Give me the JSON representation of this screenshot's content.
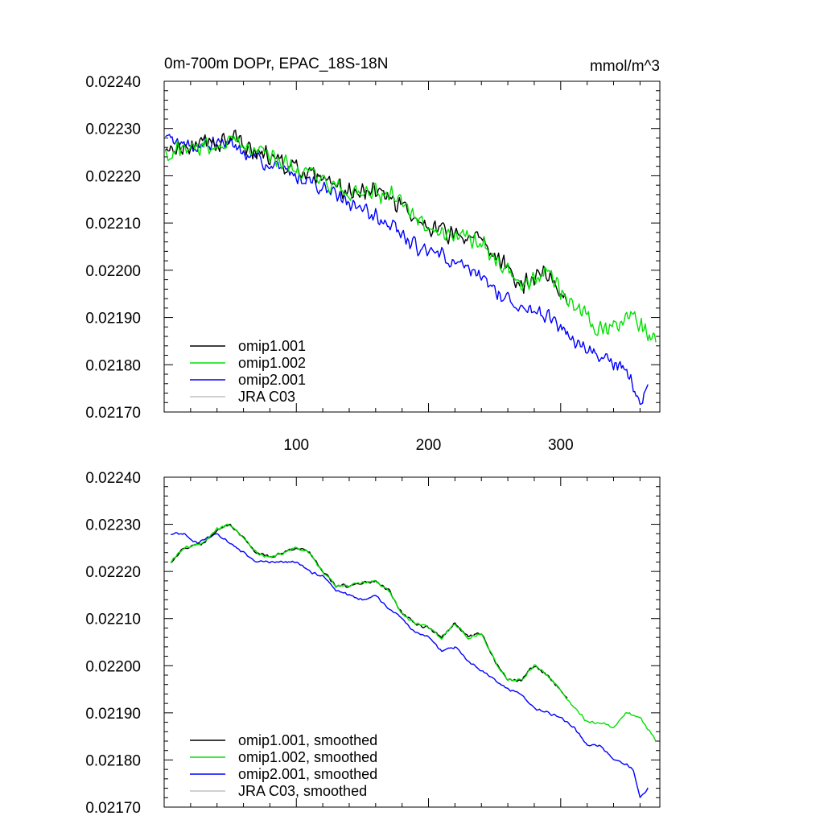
{
  "chart_data": [
    {
      "type": "line",
      "title": "0m-700m DOPr, EPAC_18S-18N",
      "units": "mmol/m^3",
      "xlim": [
        0,
        375
      ],
      "ylim": [
        0.0217,
        0.0224
      ],
      "x_ticks": [
        100,
        200,
        300
      ],
      "x_tick_labels": [
        "100",
        "200",
        "300"
      ],
      "y_ticks": [
        0.0217,
        0.0218,
        0.0219,
        0.022,
        0.0221,
        0.0222,
        0.0223,
        0.0224
      ],
      "y_tick_labels": [
        "0.02170",
        "0.02180",
        "0.02190",
        "0.02200",
        "0.02210",
        "0.02220",
        "0.02230",
        "0.02240"
      ],
      "legend_position": "bottom-left",
      "series": [
        {
          "name": "omip1.001",
          "color": "#000000",
          "x_range": [
            1,
            305
          ],
          "waypoints": [
            [
              0,
              0.02225
            ],
            [
              40,
              0.02227
            ],
            [
              50,
              0.02228
            ],
            [
              80,
              0.02224
            ],
            [
              110,
              0.0222
            ],
            [
              130,
              0.02217
            ],
            [
              170,
              0.02216
            ],
            [
              200,
              0.02209
            ],
            [
              240,
              0.02206
            ],
            [
              270,
              0.02197
            ],
            [
              290,
              0.022
            ],
            [
              305,
              0.02193
            ]
          ],
          "noise": 2.5e-05
        },
        {
          "name": "omip1.002",
          "color": "#00e000",
          "x_range": [
            1,
            372
          ],
          "waypoints": [
            [
              0,
              0.02225
            ],
            [
              40,
              0.02227
            ],
            [
              50,
              0.02228
            ],
            [
              80,
              0.02224
            ],
            [
              110,
              0.0222
            ],
            [
              130,
              0.02217
            ],
            [
              170,
              0.02216
            ],
            [
              200,
              0.02209
            ],
            [
              240,
              0.02206
            ],
            [
              270,
              0.02197
            ],
            [
              290,
              0.022
            ],
            [
              310,
              0.02192
            ],
            [
              330,
              0.02187
            ],
            [
              345,
              0.02188
            ],
            [
              355,
              0.0219
            ],
            [
              372,
              0.02184
            ]
          ],
          "noise": 2.5e-05
        },
        {
          "name": "omip2.001",
          "color": "#0000ff",
          "x_range": [
            1,
            366
          ],
          "waypoints": [
            [
              0,
              0.02228
            ],
            [
              20,
              0.02226
            ],
            [
              50,
              0.02227
            ],
            [
              80,
              0.02222
            ],
            [
              110,
              0.02219
            ],
            [
              140,
              0.02214
            ],
            [
              170,
              0.0221
            ],
            [
              190,
              0.02205
            ],
            [
              210,
              0.02203
            ],
            [
              230,
              0.022
            ],
            [
              260,
              0.02194
            ],
            [
              290,
              0.0219
            ],
            [
              320,
              0.02183
            ],
            [
              350,
              0.02179
            ],
            [
              360,
              0.02172
            ],
            [
              366,
              0.02175
            ]
          ],
          "noise": 2e-05
        },
        {
          "name": "JRA C03",
          "color": "#c0c0c0",
          "x_range": null,
          "waypoints": [],
          "noise": 0
        }
      ]
    },
    {
      "type": "line",
      "title": "",
      "xlim": [
        0,
        375
      ],
      "ylim": [
        0.0217,
        0.0224
      ],
      "x_ticks": [
        100,
        200,
        300
      ],
      "y_ticks": [
        0.0217,
        0.0218,
        0.0219,
        0.022,
        0.0221,
        0.0222,
        0.0223,
        0.0224
      ],
      "y_tick_labels": [
        "0.02170",
        "0.02180",
        "0.02190",
        "0.02200",
        "0.02210",
        "0.02220",
        "0.02230",
        "0.02240"
      ],
      "legend_position": "bottom-left",
      "series": [
        {
          "name": "omip1.001, smoothed",
          "color": "#000000",
          "x_range": [
            5,
            305
          ],
          "waypoints": [
            [
              5,
              0.02222
            ],
            [
              15,
              0.02225
            ],
            [
              30,
              0.02226
            ],
            [
              40,
              0.02229
            ],
            [
              50,
              0.0223
            ],
            [
              60,
              0.02227
            ],
            [
              70,
              0.02224
            ],
            [
              80,
              0.02223
            ],
            [
              90,
              0.02224
            ],
            [
              100,
              0.02225
            ],
            [
              110,
              0.02224
            ],
            [
              120,
              0.0222
            ],
            [
              130,
              0.02217
            ],
            [
              140,
              0.02217
            ],
            [
              160,
              0.02218
            ],
            [
              170,
              0.02216
            ],
            [
              180,
              0.02211
            ],
            [
              190,
              0.02209
            ],
            [
              200,
              0.02208
            ],
            [
              210,
              0.02206
            ],
            [
              220,
              0.02209
            ],
            [
              230,
              0.02206
            ],
            [
              240,
              0.02207
            ],
            [
              250,
              0.02201
            ],
            [
              260,
              0.02197
            ],
            [
              270,
              0.02197
            ],
            [
              280,
              0.022
            ],
            [
              290,
              0.02198
            ],
            [
              305,
              0.02193
            ]
          ],
          "noise": 4e-06
        },
        {
          "name": "omip1.002, smoothed",
          "color": "#00e000",
          "x_range": [
            5,
            372
          ],
          "waypoints": [
            [
              5,
              0.02222
            ],
            [
              15,
              0.02225
            ],
            [
              30,
              0.02226
            ],
            [
              40,
              0.02229
            ],
            [
              50,
              0.0223
            ],
            [
              60,
              0.02227
            ],
            [
              70,
              0.02224
            ],
            [
              80,
              0.02223
            ],
            [
              90,
              0.02224
            ],
            [
              100,
              0.02225
            ],
            [
              110,
              0.02224
            ],
            [
              120,
              0.0222
            ],
            [
              130,
              0.02217
            ],
            [
              140,
              0.02217
            ],
            [
              160,
              0.02218
            ],
            [
              170,
              0.02216
            ],
            [
              180,
              0.02211
            ],
            [
              190,
              0.02209
            ],
            [
              200,
              0.02208
            ],
            [
              210,
              0.02206
            ],
            [
              220,
              0.02209
            ],
            [
              230,
              0.02206
            ],
            [
              240,
              0.02207
            ],
            [
              250,
              0.02201
            ],
            [
              260,
              0.02197
            ],
            [
              270,
              0.02197
            ],
            [
              280,
              0.022
            ],
            [
              290,
              0.02198
            ],
            [
              305,
              0.02193
            ],
            [
              320,
              0.02188
            ],
            [
              330,
              0.02188
            ],
            [
              340,
              0.02187
            ],
            [
              350,
              0.0219
            ],
            [
              360,
              0.02189
            ],
            [
              372,
              0.02184
            ]
          ],
          "noise": 4e-06
        },
        {
          "name": "omip2.001, smoothed",
          "color": "#0000ff",
          "x_range": [
            5,
            366
          ],
          "waypoints": [
            [
              5,
              0.02228
            ],
            [
              15,
              0.02228
            ],
            [
              25,
              0.02226
            ],
            [
              40,
              0.02228
            ],
            [
              55,
              0.02225
            ],
            [
              70,
              0.02222
            ],
            [
              90,
              0.02222
            ],
            [
              100,
              0.02222
            ],
            [
              110,
              0.0222
            ],
            [
              120,
              0.02219
            ],
            [
              130,
              0.02216
            ],
            [
              140,
              0.02215
            ],
            [
              150,
              0.02214
            ],
            [
              160,
              0.02215
            ],
            [
              170,
              0.02212
            ],
            [
              180,
              0.0221
            ],
            [
              190,
              0.02207
            ],
            [
              200,
              0.02206
            ],
            [
              210,
              0.02203
            ],
            [
              220,
              0.02204
            ],
            [
              230,
              0.02201
            ],
            [
              240,
              0.02199
            ],
            [
              250,
              0.02197
            ],
            [
              260,
              0.02195
            ],
            [
              270,
              0.02194
            ],
            [
              280,
              0.02191
            ],
            [
              290,
              0.0219
            ],
            [
              300,
              0.02189
            ],
            [
              310,
              0.02187
            ],
            [
              320,
              0.02183
            ],
            [
              330,
              0.02183
            ],
            [
              340,
              0.0218
            ],
            [
              350,
              0.02179
            ],
            [
              355,
              0.02178
            ],
            [
              360,
              0.02172
            ],
            [
              366,
              0.02174
            ]
          ],
          "noise": 3e-06
        },
        {
          "name": "JRA C03, smoothed",
          "color": "#c0c0c0",
          "x_range": null,
          "waypoints": [],
          "noise": 0
        }
      ]
    }
  ]
}
